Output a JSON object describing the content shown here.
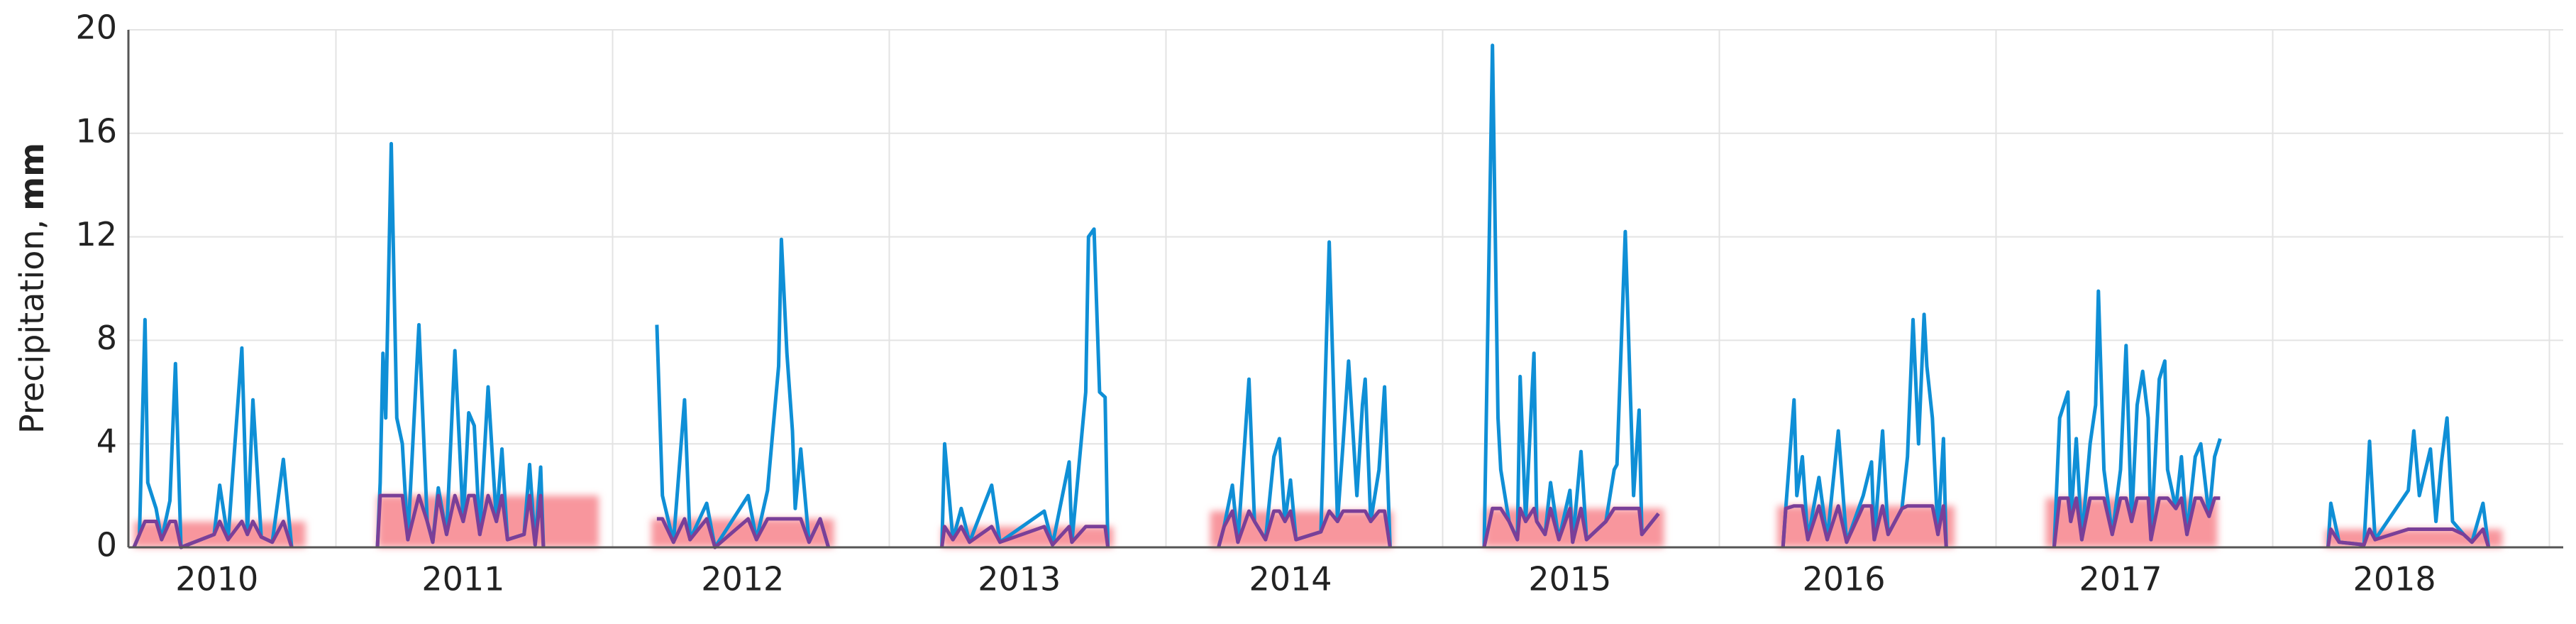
{
  "chart_data": {
    "type": "line",
    "ylabel": "Precipitation,",
    "ylabel_unit": "mm",
    "ylim": [
      0,
      20
    ],
    "yticks": [
      0,
      4,
      8,
      12,
      16,
      20
    ],
    "xlim": [
      2010.25,
      2019.05
    ],
    "xticks": [
      {
        "value": 2010.57,
        "label": "2010"
      },
      {
        "value": 2011.46,
        "label": "2011"
      },
      {
        "value": 2012.47,
        "label": "2012"
      },
      {
        "value": 2013.47,
        "label": "2013"
      },
      {
        "value": 2014.45,
        "label": "2014"
      },
      {
        "value": 2015.46,
        "label": "2015"
      },
      {
        "value": 2016.45,
        "label": "2016"
      },
      {
        "value": 2017.45,
        "label": "2017"
      },
      {
        "value": 2018.44,
        "label": "2018"
      }
    ],
    "xgrid": [
      2011,
      2012,
      2013,
      2014,
      2015,
      2016,
      2017,
      2018,
      2019
    ],
    "grid": true,
    "bands": {
      "color": "#f7848c",
      "items": [
        {
          "start": 2010.27,
          "end": 2010.89,
          "value": 1.0
        },
        {
          "start": 2011.15,
          "end": 2011.95,
          "value": 2.0
        },
        {
          "start": 2012.14,
          "end": 2012.8,
          "value": 1.1
        },
        {
          "start": 2013.19,
          "end": 2013.81,
          "value": 0.8
        },
        {
          "start": 2014.16,
          "end": 2014.82,
          "value": 1.4
        },
        {
          "start": 2015.15,
          "end": 2015.8,
          "value": 1.5
        },
        {
          "start": 2016.21,
          "end": 2016.85,
          "value": 1.6
        },
        {
          "start": 2017.18,
          "end": 2017.8,
          "value": 1.9
        },
        {
          "start": 2018.19,
          "end": 2018.83,
          "value": 0.7
        }
      ]
    },
    "x": [
      2010.27,
      2010.29,
      2010.31,
      2010.32,
      2010.35,
      2010.37,
      2010.4,
      2010.42,
      2010.44,
      2010.56,
      2010.58,
      2010.61,
      2010.66,
      2010.68,
      2010.7,
      2010.73,
      2010.77,
      2010.81,
      2010.84,
      null,
      2011.15,
      2011.16,
      2011.17,
      2011.18,
      2011.2,
      2011.22,
      2011.24,
      2011.26,
      2011.3,
      2011.33,
      2011.35,
      2011.37,
      2011.4,
      2011.43,
      2011.46,
      2011.48,
      2011.5,
      2011.52,
      2011.55,
      2011.58,
      2011.6,
      2011.62,
      2011.68,
      2011.7,
      2011.72,
      2011.74,
      2011.75,
      null,
      2012.16,
      2012.18,
      2012.22,
      2012.26,
      2012.28,
      2012.34,
      2012.37,
      2012.49,
      2012.52,
      2012.56,
      2012.6,
      2012.61,
      2012.63,
      2012.65,
      2012.66,
      2012.68,
      2012.71,
      2012.75,
      2012.78,
      null,
      2013.19,
      2013.2,
      2013.23,
      2013.26,
      2013.29,
      2013.37,
      2013.4,
      2013.56,
      2013.59,
      2013.65,
      2013.66,
      2013.71,
      2013.72,
      2013.74,
      2013.76,
      2013.78,
      2013.79,
      null,
      2014.19,
      2014.21,
      2014.24,
      2014.26,
      2014.3,
      2014.32,
      2014.36,
      2014.39,
      2014.41,
      2014.43,
      2014.45,
      2014.47,
      2014.56,
      2014.59,
      2014.62,
      2014.64,
      2014.66,
      2014.69,
      2014.71,
      2014.72,
      2014.74,
      2014.77,
      2014.79,
      2014.81,
      null,
      2015.15,
      2015.18,
      2015.2,
      2015.21,
      2015.24,
      2015.27,
      2015.28,
      2015.3,
      2015.33,
      2015.34,
      2015.37,
      2015.39,
      2015.42,
      2015.46,
      2015.47,
      2015.5,
      2015.52,
      2015.59,
      2015.62,
      2015.63,
      2015.66,
      2015.69,
      2015.71,
      2015.72,
      2015.78,
      null,
      2016.23,
      2016.24,
      2016.27,
      2016.28,
      2016.3,
      2016.32,
      2016.36,
      2016.39,
      2016.43,
      2016.46,
      2016.52,
      2016.55,
      2016.56,
      2016.59,
      2016.61,
      2016.66,
      2016.68,
      2016.7,
      2016.72,
      2016.74,
      2016.75,
      2016.77,
      2016.79,
      2016.81,
      2016.82,
      null,
      2017.21,
      2017.23,
      2017.26,
      2017.27,
      2017.29,
      2017.31,
      2017.34,
      2017.36,
      2017.37,
      2017.39,
      2017.42,
      2017.45,
      2017.47,
      2017.49,
      2017.51,
      2017.53,
      2017.55,
      2017.56,
      2017.59,
      2017.61,
      2017.62,
      2017.65,
      2017.67,
      2017.69,
      2017.72,
      2017.74,
      2017.77,
      2017.79,
      2017.81,
      null,
      2018.2,
      2018.21,
      2018.24,
      2018.33,
      2018.35,
      2018.37,
      2018.49,
      2018.51,
      2018.53,
      2018.57,
      2018.59,
      2018.61,
      2018.63,
      2018.65,
      2018.69,
      2018.72,
      2018.76,
      2018.78
    ],
    "series": [
      {
        "color": "#0f8fd6",
        "values": [
          0,
          0.5,
          8.8,
          2.5,
          1.5,
          0.3,
          1.8,
          7.1,
          0,
          0.5,
          2.4,
          0.3,
          7.7,
          0.5,
          5.7,
          0.4,
          0.2,
          3.4,
          0,
          null,
          0,
          2.5,
          7.5,
          5,
          15.6,
          5,
          4,
          0.3,
          8.6,
          1,
          0.2,
          2.3,
          0.5,
          7.6,
          1,
          5.2,
          4.7,
          0.5,
          6.2,
          1,
          3.8,
          0.3,
          0.5,
          3.2,
          0.1,
          3.1,
          0,
          null,
          8.6,
          2,
          0.2,
          5.7,
          0.3,
          1.7,
          0,
          2,
          0.3,
          2.2,
          7,
          11.9,
          7.5,
          4.5,
          1.5,
          3.8,
          0.2,
          1.1,
          0,
          null,
          0,
          4,
          0.3,
          1.5,
          0.2,
          2.4,
          0.2,
          1.4,
          0.1,
          3.3,
          0.2,
          6,
          12,
          12.3,
          6,
          5.8,
          0,
          null,
          0,
          0.8,
          2.4,
          0.2,
          6.5,
          1,
          0.3,
          3.5,
          4.2,
          1,
          2.6,
          0.3,
          0.6,
          11.8,
          1,
          4,
          7.2,
          2,
          5.5,
          6.5,
          1,
          3,
          6.2,
          0,
          null,
          0,
          19.4,
          5,
          3,
          1,
          0.3,
          6.6,
          1,
          7.5,
          1,
          0.5,
          2.5,
          0.3,
          2.2,
          0.2,
          3.7,
          0.3,
          1,
          3,
          3.2,
          12.2,
          2,
          5.3,
          0.5,
          1.3,
          null,
          0,
          1.5,
          5.7,
          2,
          3.5,
          0.3,
          2.7,
          0.3,
          4.5,
          0.2,
          2,
          3.3,
          0.3,
          4.5,
          0.5,
          1.5,
          3.5,
          8.8,
          4,
          9,
          7,
          5,
          0.5,
          4.2,
          0,
          null,
          0,
          5,
          6,
          1,
          4.2,
          0.3,
          4,
          5.5,
          9.9,
          3,
          0.5,
          3,
          7.8,
          1,
          5.5,
          6.8,
          5,
          0.3,
          6.5,
          7.2,
          3,
          1.5,
          3.5,
          0.5,
          3.5,
          4,
          1.2,
          3.5,
          4.2,
          null,
          0,
          1.7,
          0.2,
          0.1,
          4.1,
          0.3,
          2.2,
          4.5,
          2,
          3.8,
          1,
          3.3,
          5,
          1,
          0.5,
          0.2,
          1.7,
          0
        ]
      },
      {
        "color": "#7a3f98",
        "values": [
          0,
          0.5,
          1,
          1,
          1,
          0.3,
          1,
          1,
          0,
          0.5,
          1,
          0.3,
          1,
          0.5,
          1,
          0.4,
          0.2,
          1,
          0,
          null,
          0,
          2,
          2,
          2,
          2,
          2,
          2,
          0.3,
          2,
          1,
          0.2,
          2,
          0.5,
          2,
          1,
          2,
          2,
          0.5,
          2,
          1,
          2,
          0.3,
          0.5,
          2,
          0.1,
          2,
          0,
          null,
          1.1,
          1.1,
          0.2,
          1.1,
          0.3,
          1.1,
          0,
          1.1,
          0.3,
          1.1,
          1.1,
          1.1,
          1.1,
          1.1,
          1.1,
          1.1,
          0.2,
          1.1,
          0,
          null,
          0,
          0.8,
          0.3,
          0.8,
          0.2,
          0.8,
          0.2,
          0.8,
          0.1,
          0.8,
          0.2,
          0.8,
          0.8,
          0.8,
          0.8,
          0.8,
          0,
          null,
          0,
          0.8,
          1.4,
          0.2,
          1.4,
          1,
          0.3,
          1.4,
          1.4,
          1,
          1.4,
          0.3,
          0.6,
          1.4,
          1,
          1.4,
          1.4,
          1.4,
          1.4,
          1.4,
          1,
          1.4,
          1.4,
          0,
          null,
          0,
          1.5,
          1.5,
          1.5,
          1,
          0.3,
          1.5,
          1,
          1.5,
          1,
          0.5,
          1.5,
          0.3,
          1.5,
          0.2,
          1.5,
          0.3,
          1,
          1.5,
          1.5,
          1.5,
          1.5,
          1.5,
          0.5,
          1.3,
          null,
          0,
          1.5,
          1.6,
          1.6,
          1.6,
          0.3,
          1.6,
          0.3,
          1.6,
          0.2,
          1.6,
          1.6,
          0.3,
          1.6,
          0.5,
          1.5,
          1.6,
          1.6,
          1.6,
          1.6,
          1.6,
          1.6,
          0.5,
          1.6,
          0,
          null,
          0,
          1.9,
          1.9,
          1,
          1.9,
          0.3,
          1.9,
          1.9,
          1.9,
          1.9,
          0.5,
          1.9,
          1.9,
          1,
          1.9,
          1.9,
          1.9,
          0.3,
          1.9,
          1.9,
          1.9,
          1.5,
          1.9,
          0.5,
          1.9,
          1.9,
          1.2,
          1.9,
          1.9,
          null,
          0,
          0.7,
          0.2,
          0.1,
          0.7,
          0.3,
          0.7,
          0.7,
          0.7,
          0.7,
          0.7,
          0.7,
          0.7,
          0.7,
          0.5,
          0.2,
          0.7,
          0
        ]
      }
    ]
  }
}
